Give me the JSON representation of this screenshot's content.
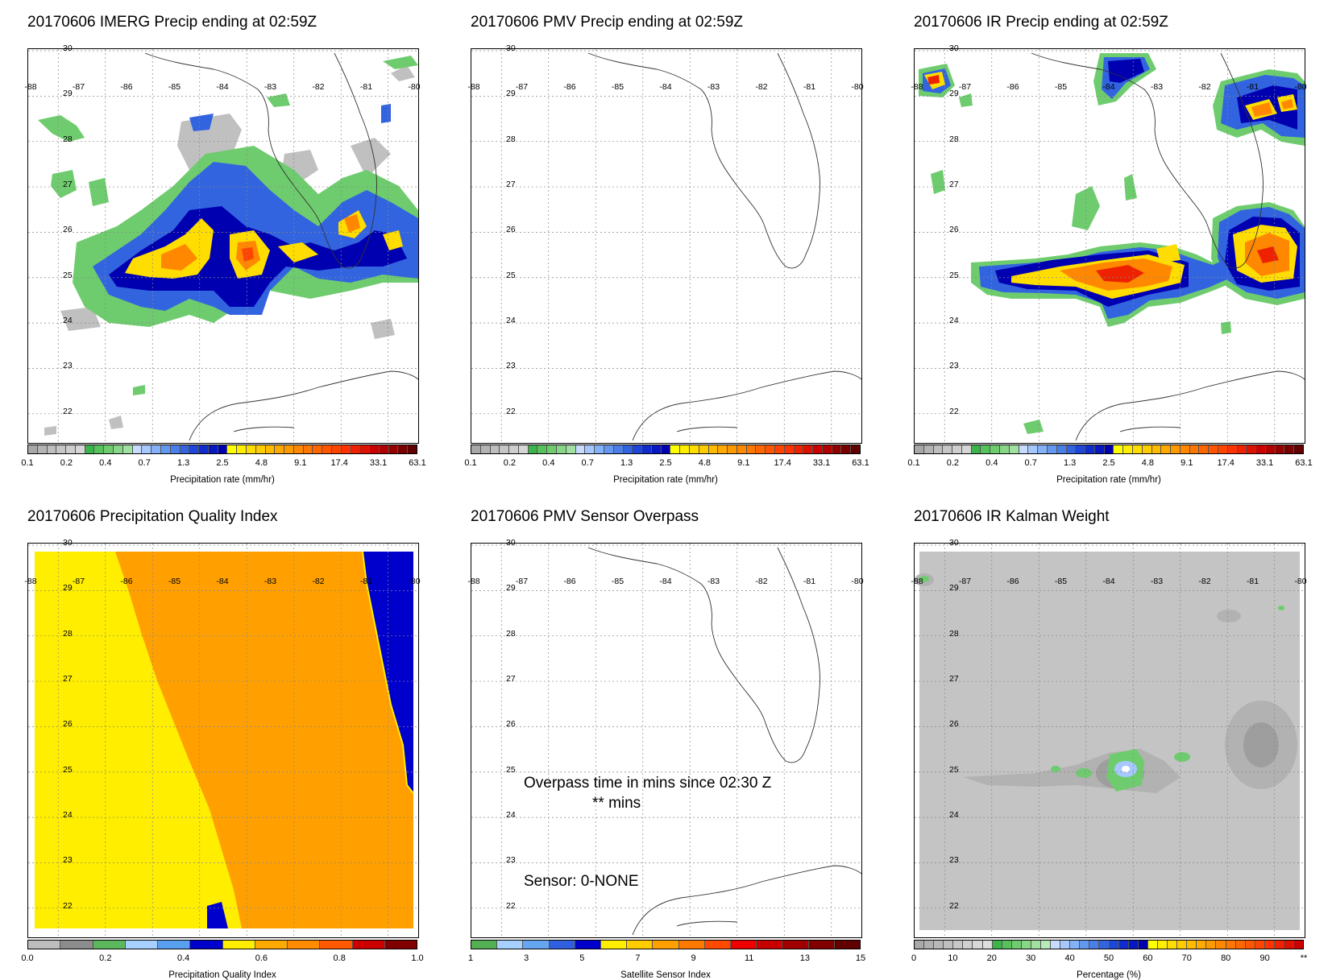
{
  "panels": {
    "imerg": {
      "title": "20170606 IMERG Precip ending at 02:59Z"
    },
    "pmv": {
      "title": "20170606 PMV Precip ending at 02:59Z"
    },
    "ir": {
      "title": "20170606 IR Precip ending at 02:59Z"
    },
    "pqi": {
      "title": "20170606 Precipitation Quality Index"
    },
    "overpass": {
      "title": "20170606 PMV Sensor Overpass"
    },
    "kalman": {
      "title": "20170606 IR Kalman Weight"
    }
  },
  "map_axes": {
    "lon_labels": [
      "-88",
      "-87",
      "-86",
      "-85",
      "-84",
      "-83",
      "-82",
      "-81",
      "-80"
    ],
    "lat_labels": [
      "30",
      "29",
      "28",
      "27",
      "26",
      "25",
      "24",
      "23",
      "22"
    ]
  },
  "colorbars": {
    "precip": {
      "title": "Precipitation rate (mm/hr)",
      "ticks": [
        "0.1",
        "0.2",
        "0.4",
        "0.7",
        "1.3",
        "2.5",
        "4.8",
        "9.1",
        "17.4",
        "33.1",
        "63.1"
      ],
      "colors": [
        "#a8a8a8",
        "#b4b4b4",
        "#bebebe",
        "#c6c6c6",
        "#cecece",
        "#d6d6d6",
        "#3cb44b",
        "#55c25c",
        "#6ecc6e",
        "#88d688",
        "#a0e0a0",
        "#c8dcff",
        "#a6c8ff",
        "#84b2f8",
        "#6298f0",
        "#4a7ee8",
        "#3264e0",
        "#1e46d8",
        "#102ccc",
        "#0818c0",
        "#0000b0",
        "#ffff00",
        "#ffee00",
        "#ffdd00",
        "#ffcc00",
        "#ffbb00",
        "#ffaa00",
        "#ff9900",
        "#ff8800",
        "#ff7700",
        "#ff6600",
        "#ff5500",
        "#ff4400",
        "#ff3300",
        "#ee2200",
        "#dd1100",
        "#cc0000",
        "#b00000",
        "#940000",
        "#780000",
        "#600000"
      ]
    },
    "pqi": {
      "title": "Precipitation Quality Index",
      "ticks": [
        "0.0",
        "0.2",
        "0.4",
        "0.6",
        "0.8",
        "1.0"
      ],
      "colors": [
        "#bdbdbd",
        "#8c8c8c",
        "#5cb85c",
        "#a6d0ff",
        "#5aa0f0",
        "#0000cc",
        "#ffee00",
        "#ffaa00",
        "#ff8c00",
        "#ff5a00",
        "#cc0000",
        "#800000"
      ]
    },
    "sensor": {
      "title": "Satellite Sensor Index",
      "ticks": [
        "1",
        "3",
        "5",
        "7",
        "9",
        "11",
        "13",
        "15"
      ],
      "colors": [
        "#55b055",
        "#a6d0ff",
        "#66a6f0",
        "#3060e0",
        "#0000cc",
        "#ffee00",
        "#ffcc00",
        "#ffa000",
        "#ff7800",
        "#ff4800",
        "#ee0000",
        "#c80000",
        "#a00000",
        "#800000",
        "#600000"
      ]
    },
    "percent": {
      "title": "Percentage (%)",
      "ticks": [
        "0",
        "10",
        "20",
        "30",
        "40",
        "50",
        "60",
        "70",
        "80",
        "90",
        "**"
      ],
      "colors": [
        "#a8a8a8",
        "#b0b0b0",
        "#b8b8b8",
        "#c0c0c0",
        "#c8c8c8",
        "#d0d0d0",
        "#d8d8d8",
        "#dedede",
        "#3cb44b",
        "#55c25c",
        "#6ecc6e",
        "#88d688",
        "#a0e0a0",
        "#b8eab8",
        "#c8dcff",
        "#a6c8ff",
        "#84b2f8",
        "#6298f0",
        "#4a7ee8",
        "#3264e0",
        "#1e46d8",
        "#102ccc",
        "#0818c0",
        "#0000b0",
        "#ffff00",
        "#ffee00",
        "#ffdd00",
        "#ffcc00",
        "#ffbb00",
        "#ffaa00",
        "#ff9900",
        "#ff8800",
        "#ff7700",
        "#ff6600",
        "#ff5500",
        "#ff4400",
        "#ff3300",
        "#ee2200",
        "#dd1100",
        "#cc0000"
      ]
    }
  },
  "overpass_text": {
    "line1": "Overpass time in mins since 02:30 Z",
    "line2": "** mins",
    "sensor": "Sensor:   0-NONE"
  }
}
